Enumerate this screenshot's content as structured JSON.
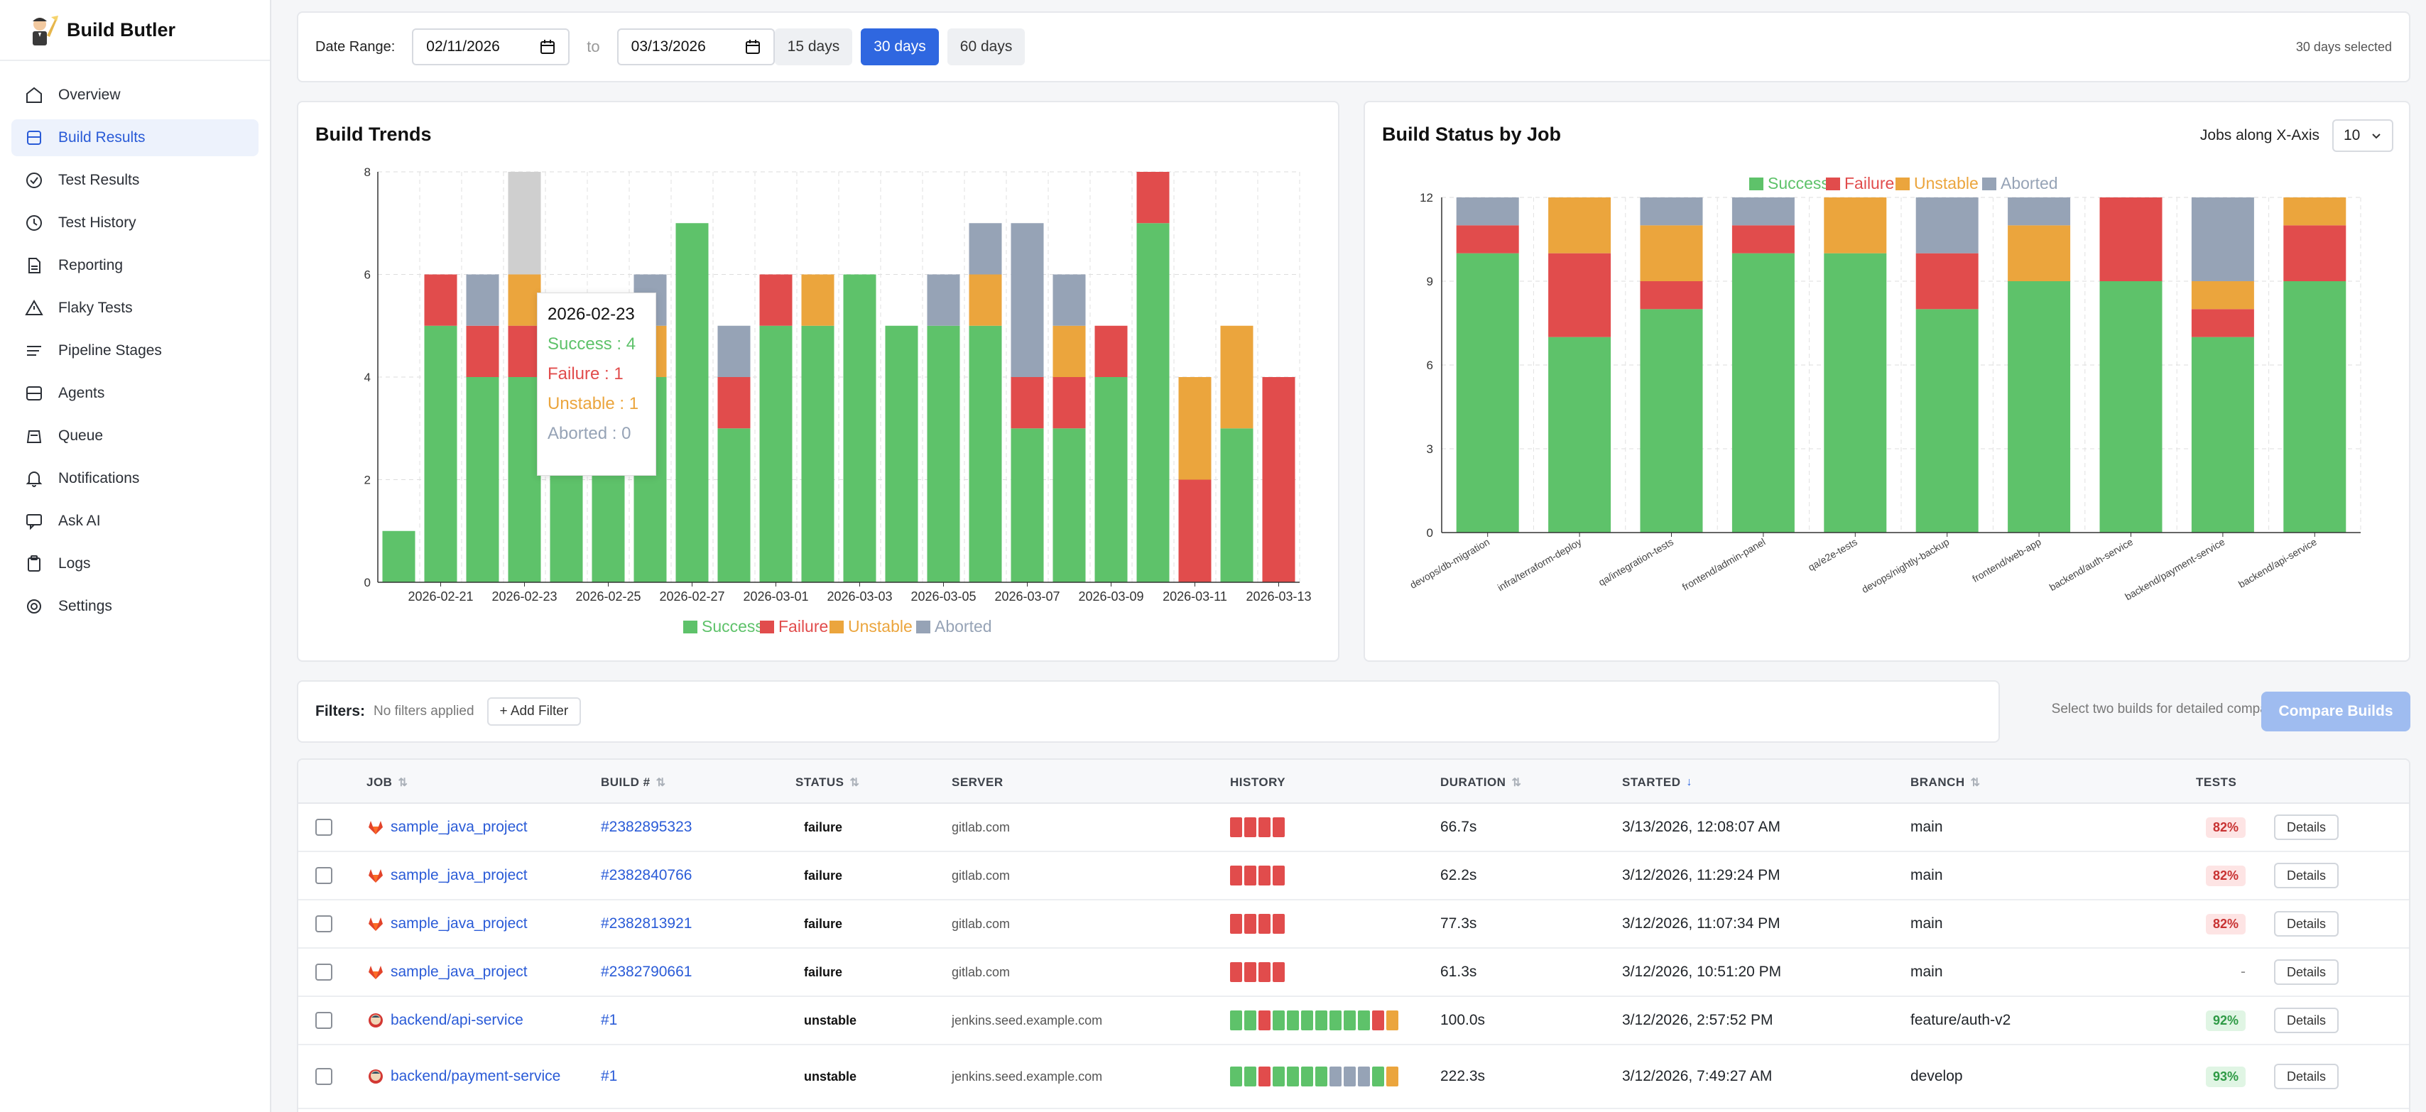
{
  "app": {
    "name": "Build Butler"
  },
  "sidebar": {
    "items": [
      {
        "label": "Overview",
        "icon": "home-icon",
        "active": false
      },
      {
        "label": "Build Results",
        "icon": "layers-icon",
        "active": true
      },
      {
        "label": "Test Results",
        "icon": "check-circle-icon",
        "active": false
      },
      {
        "label": "Test History",
        "icon": "clock-icon",
        "active": false
      },
      {
        "label": "Reporting",
        "icon": "document-icon",
        "active": false
      },
      {
        "label": "Flaky Tests",
        "icon": "warning-icon",
        "active": false
      },
      {
        "label": "Pipeline Stages",
        "icon": "lines-icon",
        "active": false
      },
      {
        "label": "Agents",
        "icon": "server-icon",
        "active": false
      },
      {
        "label": "Queue",
        "icon": "stack-icon",
        "active": false
      },
      {
        "label": "Notifications",
        "icon": "bell-icon",
        "active": false
      },
      {
        "label": "Ask AI",
        "icon": "chat-icon",
        "active": false
      },
      {
        "label": "Logs",
        "icon": "clipboard-icon",
        "active": false
      },
      {
        "label": "Settings",
        "icon": "gear-icon",
        "active": false
      }
    ]
  },
  "date_range": {
    "label": "Date Range:",
    "from": "02/11/2026",
    "to_label": "to",
    "to": "03/13/2026",
    "buttons": [
      "15 days",
      "30 days",
      "60 days"
    ],
    "active_button": "30 days",
    "selected_text": "30 days selected"
  },
  "colors": {
    "success": "#5ec26a",
    "failure": "#e14c4c",
    "unstable": "#eba53d",
    "aborted": "#96a3b6",
    "accent": "#2f67e0"
  },
  "trends": {
    "title": "Build Trends",
    "tooltip": {
      "date": "2026-02-23",
      "success": "Success : 4",
      "failure": "Failure : 1",
      "unstable": "Unstable : 1",
      "aborted": "Aborted : 0"
    }
  },
  "status_by_job": {
    "title": "Build Status by Job",
    "jobs_label": "Jobs along X-Axis",
    "jobs_value": "10"
  },
  "chart_data": [
    {
      "type": "bar",
      "stacked": true,
      "title": "Build Trends",
      "categories": [
        "2026-02-20",
        "2026-02-21",
        "2026-02-22",
        "2026-02-23",
        "2026-02-24",
        "2026-02-25",
        "2026-02-26",
        "2026-02-27",
        "2026-02-28",
        "2026-03-01",
        "2026-03-02",
        "2026-03-03",
        "2026-03-04",
        "2026-03-05",
        "2026-03-06",
        "2026-03-07",
        "2026-03-08",
        "2026-03-09",
        "2026-03-10",
        "2026-03-11",
        "2026-03-12",
        "2026-03-13"
      ],
      "tick_labels": [
        "2026-02-21",
        "2026-02-23",
        "2026-02-25",
        "2026-02-27",
        "2026-03-01",
        "2026-03-03",
        "2026-03-05",
        "2026-03-07",
        "2026-03-09",
        "2026-03-11",
        "2026-03-13"
      ],
      "ylim": [
        0,
        8
      ],
      "yticks": [
        0,
        2,
        4,
        6,
        8
      ],
      "highlight": "2026-02-23",
      "legend": [
        "Success",
        "Failure",
        "Unstable",
        "Aborted"
      ],
      "series": [
        {
          "name": "Success",
          "values": [
            1,
            5,
            4,
            4,
            4,
            4,
            4,
            7,
            3,
            5,
            5,
            6,
            5,
            5,
            5,
            3,
            3,
            4,
            7,
            0,
            3,
            0
          ]
        },
        {
          "name": "Failure",
          "values": [
            0,
            1,
            1,
            1,
            1,
            0,
            0,
            0,
            1,
            1,
            0,
            0,
            0,
            0,
            0,
            1,
            1,
            1,
            1,
            2,
            0,
            4
          ]
        },
        {
          "name": "Unstable",
          "values": [
            0,
            0,
            0,
            1,
            0,
            1,
            1,
            0,
            0,
            0,
            1,
            0,
            0,
            0,
            1,
            0,
            1,
            0,
            0,
            2,
            2,
            0
          ]
        },
        {
          "name": "Aborted",
          "values": [
            0,
            0,
            1,
            0,
            0,
            0,
            1,
            0,
            1,
            0,
            0,
            0,
            0,
            1,
            1,
            3,
            1,
            0,
            0,
            0,
            0,
            0
          ]
        }
      ]
    },
    {
      "type": "bar",
      "stacked": true,
      "title": "Build Status by Job",
      "categories": [
        "devops/db-migration",
        "infra/terraform-deploy",
        "qa/integration-tests",
        "frontend/admin-panel",
        "qa/e2e-tests",
        "devops/nightly-backup",
        "frontend/web-app",
        "backend/auth-service",
        "backend/payment-service",
        "backend/api-service"
      ],
      "ylim": [
        0,
        12
      ],
      "yticks": [
        0,
        3,
        6,
        9,
        12
      ],
      "legend": [
        "Success",
        "Failure",
        "Unstable",
        "Aborted"
      ],
      "series": [
        {
          "name": "Success",
          "values": [
            10,
            7,
            8,
            10,
            10,
            8,
            9,
            9,
            7,
            9
          ]
        },
        {
          "name": "Failure",
          "values": [
            1,
            3,
            1,
            1,
            0,
            2,
            0,
            3,
            1,
            2
          ]
        },
        {
          "name": "Unstable",
          "values": [
            0,
            2,
            2,
            0,
            2,
            0,
            2,
            0,
            1,
            1
          ]
        },
        {
          "name": "Aborted",
          "values": [
            1,
            0,
            1,
            1,
            0,
            2,
            1,
            0,
            3,
            0
          ]
        }
      ]
    }
  ],
  "filters": {
    "label": "Filters:",
    "none": "No filters applied",
    "add": "+ Add Filter",
    "compare_hint": "Select two builds for detailed comparison",
    "compare_button": "Compare Builds"
  },
  "table": {
    "headers": {
      "job": "JOB",
      "build": "BUILD #",
      "status": "STATUS",
      "server": "SERVER",
      "history": "HISTORY",
      "duration": "DURATION",
      "started": "STARTED",
      "branch": "BRANCH",
      "tests": "TESTS"
    },
    "details_label": "Details",
    "rows": [
      {
        "job": "sample_java_project",
        "source": "gitlab",
        "build": "#2382895323",
        "status": "failure",
        "server": "gitlab.com",
        "history": [
          "f",
          "f",
          "f",
          "f"
        ],
        "duration": "66.7s",
        "started": "3/13/2026, 12:08:07 AM",
        "branch": "main",
        "tests": "82%",
        "tests_level": "bad"
      },
      {
        "job": "sample_java_project",
        "source": "gitlab",
        "build": "#2382840766",
        "status": "failure",
        "server": "gitlab.com",
        "history": [
          "f",
          "f",
          "f",
          "f"
        ],
        "duration": "62.2s",
        "started": "3/12/2026, 11:29:24 PM",
        "branch": "main",
        "tests": "82%",
        "tests_level": "bad"
      },
      {
        "job": "sample_java_project",
        "source": "gitlab",
        "build": "#2382813921",
        "status": "failure",
        "server": "gitlab.com",
        "history": [
          "f",
          "f",
          "f",
          "f"
        ],
        "duration": "77.3s",
        "started": "3/12/2026, 11:07:34 PM",
        "branch": "main",
        "tests": "82%",
        "tests_level": "bad"
      },
      {
        "job": "sample_java_project",
        "source": "gitlab",
        "build": "#2382790661",
        "status": "failure",
        "server": "gitlab.com",
        "history": [
          "f",
          "f",
          "f",
          "f"
        ],
        "duration": "61.3s",
        "started": "3/12/2026, 10:51:20 PM",
        "branch": "main",
        "tests": "-",
        "tests_level": "none"
      },
      {
        "job": "backend/api-service",
        "source": "jenkins",
        "build": "#1",
        "status": "unstable",
        "server": "jenkins.seed.example.com",
        "history": [
          "s",
          "s",
          "f",
          "s",
          "s",
          "s",
          "s",
          "s",
          "s",
          "s",
          "f",
          "u"
        ],
        "duration": "100.0s",
        "started": "3/12/2026, 2:57:52 PM",
        "branch": "feature/auth-v2",
        "tests": "92%",
        "tests_level": "good"
      },
      {
        "job": "backend/payment-service",
        "source": "jenkins",
        "build": "#1",
        "status": "unstable",
        "server": "jenkins.seed.example.com",
        "history": [
          "s",
          "s",
          "f",
          "s",
          "s",
          "s",
          "s",
          "a",
          "a",
          "a",
          "s",
          "u"
        ],
        "duration": "222.3s",
        "started": "3/12/2026, 7:49:27 AM",
        "branch": "develop",
        "tests": "93%",
        "tests_level": "good"
      }
    ]
  }
}
